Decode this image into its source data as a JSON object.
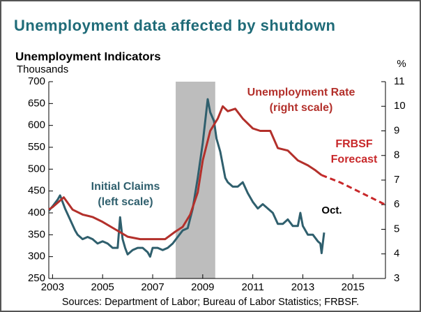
{
  "chart_data": {
    "type": "line",
    "title": "Unemployment data affected by shutdown",
    "subtitle": "Unemployment Indicators",
    "ylabel": "Thousands",
    "y2label": "%",
    "source": "Sources: Department of Labor; Bureau of Labor Statistics; FRBSF.",
    "xlim": [
      2002.85,
      2016.3
    ],
    "xticks": [
      2003,
      2005,
      2007,
      2009,
      2011,
      2013,
      2015
    ],
    "ylim": [
      250,
      700
    ],
    "yticks": [
      250,
      300,
      350,
      400,
      450,
      500,
      550,
      600,
      650,
      700
    ],
    "y2lim": [
      3,
      11
    ],
    "y2ticks": [
      3,
      4,
      5,
      6,
      7,
      8,
      9,
      10,
      11
    ],
    "shaded": [
      2007.92,
      2009.5
    ],
    "annotations": [
      "Oct."
    ],
    "series": [
      {
        "label": [
          "Initial Claims",
          "(left scale)"
        ],
        "color": "#2f5f6d",
        "style": "solid",
        "x": [
          2002.85,
          2003.0,
          2003.2,
          2003.3,
          2003.5,
          2003.7,
          2003.9,
          2004.0,
          2004.2,
          2004.4,
          2004.6,
          2004.8,
          2005.0,
          2005.2,
          2005.4,
          2005.6,
          2005.7,
          2005.8,
          2005.9,
          2006.0,
          2006.2,
          2006.4,
          2006.6,
          2006.8,
          2006.9,
          2007.0,
          2007.2,
          2007.4,
          2007.6,
          2007.8,
          2008.0,
          2008.2,
          2008.4,
          2008.6,
          2008.8,
          2009.0,
          2009.2,
          2009.3,
          2009.45,
          2009.55,
          2009.7,
          2009.9,
          2010.0,
          2010.2,
          2010.4,
          2010.6,
          2010.8,
          2011.0,
          2011.2,
          2011.4,
          2011.6,
          2011.8,
          2012.0,
          2012.2,
          2012.4,
          2012.6,
          2012.8,
          2012.9,
          2013.0,
          2013.2,
          2013.4,
          2013.6,
          2013.7,
          2013.75,
          2013.85
        ],
        "values": [
          405,
          415,
          430,
          440,
          410,
          385,
          360,
          350,
          340,
          345,
          340,
          330,
          335,
          330,
          320,
          320,
          390,
          340,
          320,
          305,
          315,
          320,
          320,
          310,
          300,
          320,
          320,
          315,
          320,
          330,
          345,
          360,
          365,
          410,
          480,
          560,
          660,
          630,
          610,
          570,
          540,
          480,
          470,
          460,
          460,
          470,
          445,
          425,
          410,
          420,
          410,
          400,
          375,
          375,
          385,
          370,
          370,
          400,
          370,
          350,
          350,
          335,
          330,
          308,
          355
        ]
      },
      {
        "label": [
          "Unemployment Rate",
          "(right scale)"
        ],
        "color": "#b3302b",
        "style": "solid",
        "axis": "y2",
        "x": [
          2002.85,
          2003.0,
          2003.45,
          2003.8,
          2004.2,
          2004.6,
          2005.0,
          2005.5,
          2006.0,
          2006.5,
          2007.0,
          2007.5,
          2007.9,
          2008.2,
          2008.5,
          2008.8,
          2009.0,
          2009.3,
          2009.6,
          2009.8,
          2010.0,
          2010.3,
          2010.6,
          2011.0,
          2011.3,
          2011.7,
          2012.0,
          2012.4,
          2012.8,
          2013.2,
          2013.5,
          2013.75
        ],
        "values": [
          5.8,
          5.9,
          6.3,
          5.8,
          5.6,
          5.5,
          5.3,
          5.0,
          4.7,
          4.6,
          4.6,
          4.6,
          4.9,
          5.1,
          5.6,
          6.5,
          7.8,
          9.0,
          9.5,
          10.0,
          9.8,
          9.9,
          9.5,
          9.1,
          9.0,
          9.0,
          8.3,
          8.2,
          7.8,
          7.6,
          7.4,
          7.2
        ]
      },
      {
        "label": [
          "FRBSF",
          "Forecast"
        ],
        "color": "#c8282a",
        "style": "dashed",
        "axis": "y2",
        "x": [
          2013.75,
          2014.5,
          2015.3,
          2016.3
        ],
        "values": [
          7.2,
          6.9,
          6.5,
          6.0
        ]
      }
    ]
  }
}
